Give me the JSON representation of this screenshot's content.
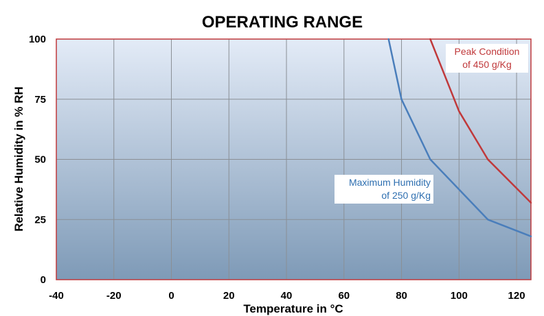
{
  "chart_data": {
    "type": "line",
    "title": "OPERATING RANGE",
    "xlabel": "Temperature in °C",
    "ylabel": "Relative Humidity in % RH",
    "xlim": [
      -40,
      125
    ],
    "ylim": [
      0,
      100
    ],
    "x_ticks": [
      "-40",
      "-20",
      "0",
      "20",
      "40",
      "60",
      "80",
      "100",
      "120"
    ],
    "y_ticks": [
      "0",
      "25",
      "50",
      "75",
      "100"
    ],
    "grid": true,
    "series": [
      {
        "name": "Peak Condition of 450 g/Kg",
        "color": "#c0393b",
        "x": [
          90,
          100,
          110,
          125
        ],
        "y": [
          100,
          70,
          50,
          32
        ]
      },
      {
        "name": "Maximum Humidity of 250 g/Kg",
        "color": "#4a7ebb",
        "x": [
          75.5,
          80,
          90,
          110,
          125
        ],
        "y": [
          100,
          75,
          50,
          25,
          18
        ]
      }
    ],
    "annotations": {
      "peak": {
        "line1": "Peak Condition",
        "line2": "of 450 g/Kg",
        "color": "#c0393b"
      },
      "max": {
        "line1": "Maximum Humidity",
        "line2": "of 250 g/Kg",
        "color": "#2e6fb0"
      }
    },
    "colors": {
      "plot_top": "#e3ebf7",
      "plot_bottom": "#7e9ab7",
      "frame": "#c0393b"
    }
  }
}
